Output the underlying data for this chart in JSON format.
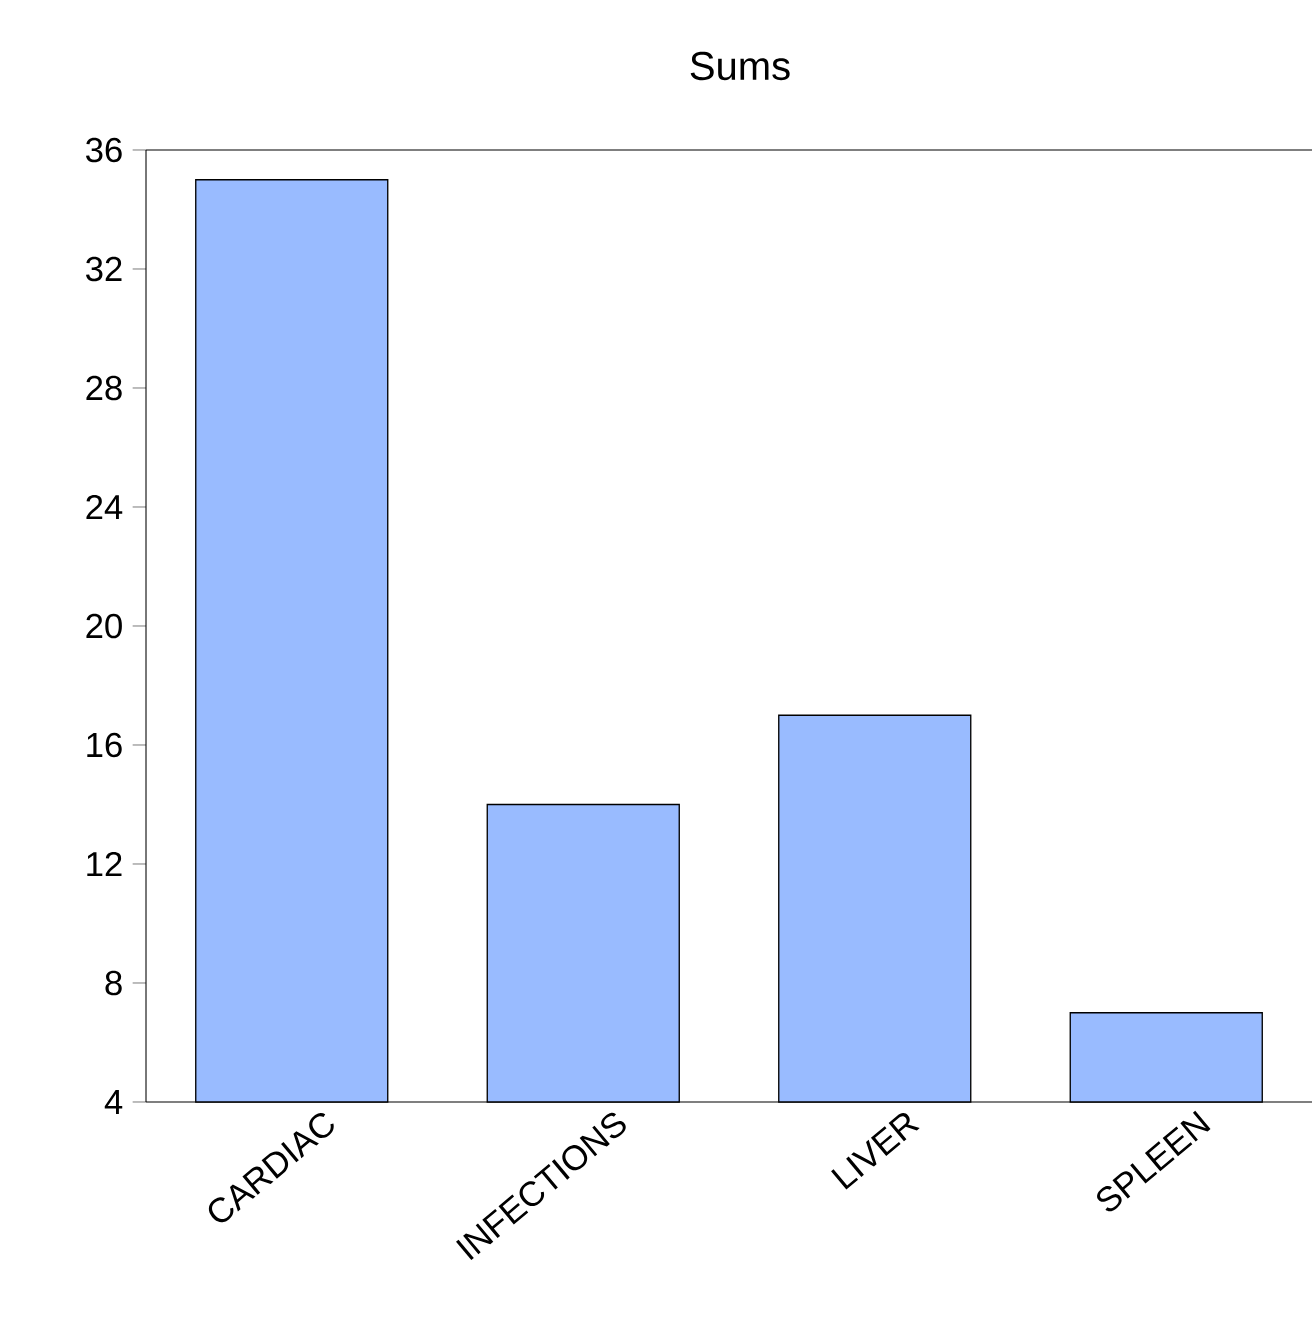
{
  "chart_data": {
    "type": "bar",
    "title": "Sums",
    "categories": [
      "CARDIAC",
      "INFECTIONS",
      "LIVER",
      "SPLEEN"
    ],
    "values": [
      35,
      14,
      17,
      7
    ],
    "color": "#99bbff",
    "ylim": [
      4,
      36
    ],
    "yticks": [
      4,
      8,
      12,
      16,
      20,
      24,
      28,
      32,
      36
    ],
    "grid": false
  }
}
